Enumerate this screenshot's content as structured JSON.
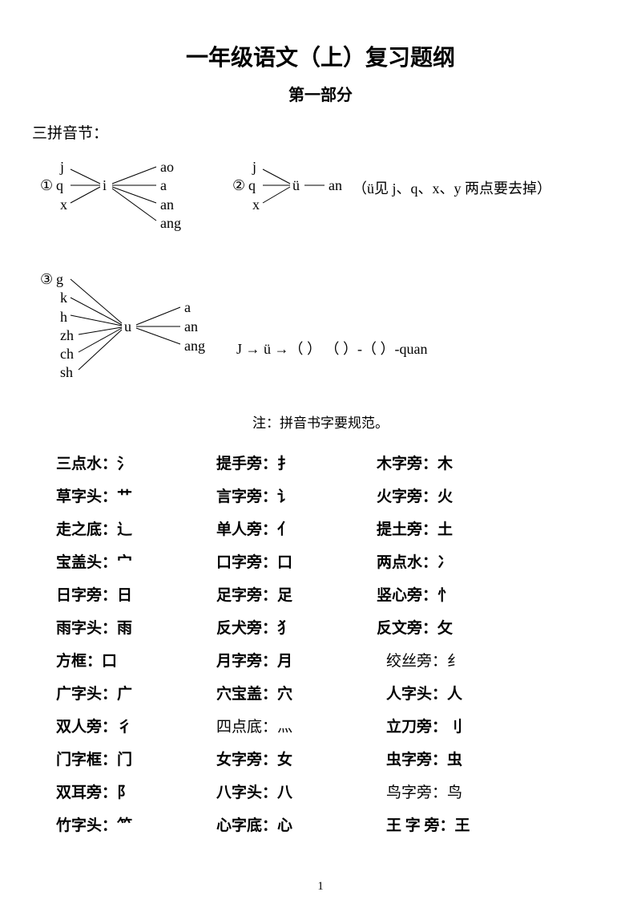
{
  "title": "一年级语文（上）复习题纲",
  "subtitle": "第一部分",
  "section": "三拼音节：",
  "group1": {
    "num": "①",
    "left": [
      "j",
      "q",
      "x"
    ],
    "mid": "i",
    "right": [
      "ao",
      "a",
      "an",
      "ang"
    ]
  },
  "group2": {
    "num": "②",
    "left": [
      "j",
      "q",
      "x"
    ],
    "mid": "ü",
    "right": "an",
    "note": "（ü见 j、q、x、y 两点要去掉）"
  },
  "group3": {
    "num": "③",
    "left": [
      "g",
      "k",
      "h",
      "zh",
      "ch",
      "sh"
    ],
    "mid": "u",
    "right": [
      "a",
      "an",
      "ang"
    ],
    "tail": "J → ü →（    ）   （   ）-（   ）-quan"
  },
  "note": "注：拼音书字要规范。",
  "radicals": [
    [
      {
        "t": "三点水：氵",
        "w": "b"
      },
      {
        "t": "提手旁：扌",
        "w": "b"
      },
      {
        "t": "木字旁：木",
        "w": "b"
      }
    ],
    [
      {
        "t": "草字头：艹",
        "w": "b"
      },
      {
        "t": "言字旁：讠",
        "w": "b"
      },
      {
        "t": "火字旁：火",
        "w": "b"
      }
    ],
    [
      {
        "t": "走之底：辶",
        "w": "b"
      },
      {
        "t": "单人旁：亻",
        "w": "b"
      },
      {
        "t": "提土旁：土",
        "w": "b"
      }
    ],
    [
      {
        "t": "宝盖头：宀",
        "w": "b"
      },
      {
        "t": "口字旁：口",
        "w": "b"
      },
      {
        "t": "两点水：冫",
        "w": "b"
      }
    ],
    [
      {
        "t": "日字旁：日",
        "w": "b"
      },
      {
        "t": "足字旁：足",
        "w": "b"
      },
      {
        "t": "竖心旁：忄",
        "w": "b"
      }
    ],
    [
      {
        "t": "雨字头：雨",
        "w": "b"
      },
      {
        "t": "反犬旁：犭",
        "w": "b"
      },
      {
        "t": "反文旁：攵",
        "w": "b"
      }
    ],
    [
      {
        "t": "方框：口",
        "w": "b"
      },
      {
        "t": "月字旁：月",
        "w": "b"
      },
      {
        "t": "绞丝旁：纟",
        "w": "n",
        "i": true
      }
    ],
    [
      {
        "t": "广字头：广",
        "w": "b"
      },
      {
        "t": "穴宝盖：穴",
        "w": "b"
      },
      {
        "t": "人字头：人",
        "w": "b",
        "i": true
      }
    ],
    [
      {
        "t": "双人旁：彳",
        "w": "b"
      },
      {
        "t": "四点底：灬",
        "w": "n"
      },
      {
        "t": "立刀旁：刂",
        "w": "b",
        "i": true
      }
    ],
    [
      {
        "t": "门字框：门",
        "w": "b"
      },
      {
        "t": "女字旁：女",
        "w": "b"
      },
      {
        "t": "虫字旁：虫",
        "w": "b",
        "i": true
      }
    ],
    [
      {
        "t": "双耳旁：阝",
        "w": "b"
      },
      {
        "t": "八字头：八",
        "w": "b"
      },
      {
        "t": "鸟字旁：鸟",
        "w": "n",
        "i": true
      }
    ],
    [
      {
        "t": "竹字头：⺮",
        "w": "b"
      },
      {
        "t": "心字底：心",
        "w": "b"
      },
      {
        "t": "王 字 旁：王",
        "w": "b",
        "i": true
      }
    ]
  ],
  "pagenum": "1"
}
